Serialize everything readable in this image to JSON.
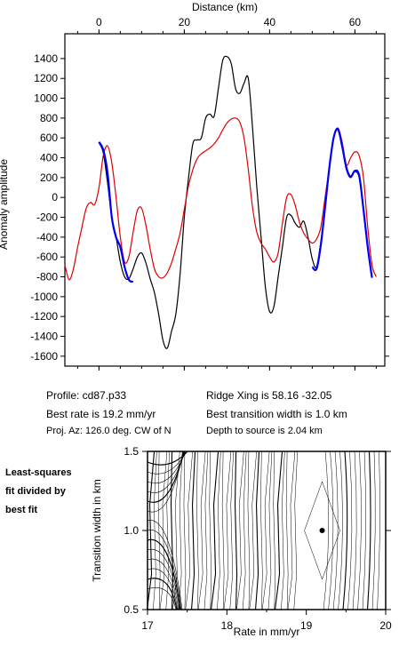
{
  "chart_data": [
    {
      "type": "line",
      "title": "",
      "xlabel": "Distance (km)",
      "ylabel": "Anomaly amplitude",
      "xlim": [
        -8,
        67
      ],
      "ylim": [
        -1700,
        1650
      ],
      "xticks": [
        "0",
        "20",
        "40",
        "60"
      ],
      "xtick_values": [
        0,
        20,
        40,
        60
      ],
      "yticks": [
        "1400",
        "1200",
        "1000",
        "800",
        "600",
        "400",
        "200",
        "0",
        "-200",
        "-400",
        "-600",
        "-800",
        "-1000",
        "-1200",
        "-1400",
        "-1600"
      ],
      "ytick_values": [
        1400,
        1200,
        1000,
        800,
        600,
        400,
        200,
        0,
        -200,
        -400,
        -600,
        -800,
        -1000,
        -1200,
        -1400,
        -1600
      ],
      "grid": false,
      "series": [
        {
          "color": "#000000",
          "x": [
            0,
            1,
            2,
            3,
            4,
            5,
            6,
            7,
            8,
            9,
            10,
            11,
            12,
            13,
            14,
            15,
            16,
            17,
            18,
            19,
            20,
            21,
            22,
            23,
            24,
            25,
            26,
            27,
            28,
            29,
            30,
            31,
            32,
            33,
            34,
            35,
            36,
            37,
            38,
            39,
            40,
            41,
            42,
            43,
            44,
            45,
            46,
            47,
            48,
            49,
            50,
            51,
            52,
            53,
            54,
            55,
            56,
            57,
            58,
            59,
            60,
            61,
            62,
            63,
            64
          ],
          "values": [
            550,
            450,
            150,
            -200,
            -400,
            -650,
            -800,
            -820,
            -720,
            -600,
            -560,
            -660,
            -820,
            -960,
            -1180,
            -1440,
            -1520,
            -1350,
            -1180,
            -780,
            -200,
            200,
            540,
            580,
            600,
            800,
            840,
            820,
            1100,
            1380,
            1420,
            1350,
            1100,
            1050,
            1150,
            1200,
            700,
            100,
            -400,
            -900,
            -1150,
            -1100,
            -800,
            -500,
            -200,
            -180,
            -260,
            -300,
            -240,
            -400,
            -620,
            -700,
            -450,
            -100,
            300,
            600,
            680,
            500,
            280,
            200,
            260,
            200,
            -100,
            -500,
            -800
          ]
        },
        {
          "color": "#e00000",
          "x": [
            -8,
            -7,
            -6,
            -5,
            -4,
            -3,
            -2,
            -1,
            0,
            1,
            2,
            3,
            4,
            5,
            6,
            7,
            8,
            9,
            10,
            11,
            12,
            13,
            14,
            15,
            16,
            17,
            18,
            19,
            20,
            21,
            22,
            23,
            24,
            25,
            26,
            27,
            28,
            29,
            30,
            31,
            32,
            33,
            34,
            35,
            36,
            37,
            38,
            39,
            40,
            41,
            42,
            43,
            44,
            45,
            46,
            47,
            48,
            49,
            50,
            51,
            52,
            53,
            54,
            55,
            56,
            57,
            58,
            59,
            60,
            61,
            62,
            63,
            64,
            65
          ],
          "values": [
            -680,
            -830,
            -720,
            -500,
            -300,
            -110,
            -50,
            -70,
            100,
            420,
            520,
            350,
            0,
            -400,
            -650,
            -600,
            -350,
            -130,
            -110,
            -280,
            -520,
            -720,
            -800,
            -810,
            -760,
            -660,
            -520,
            -360,
            -120,
            120,
            280,
            390,
            440,
            470,
            500,
            540,
            600,
            680,
            750,
            790,
            800,
            760,
            600,
            280,
            -100,
            -350,
            -460,
            -520,
            -600,
            -650,
            -560,
            -260,
            0,
            30,
            -80,
            -250,
            -360,
            -420,
            -460,
            -420,
            -300,
            0,
            300,
            600,
            700,
            560,
            330,
            400,
            460,
            420,
            200,
            -300,
            -680,
            -800
          ]
        },
        {
          "color": "#0000ff",
          "x": [
            0,
            1,
            2,
            3,
            4,
            5,
            6,
            7,
            8
          ],
          "values": [
            560,
            480,
            250,
            -200,
            -400,
            -500,
            -700,
            -830,
            -850
          ],
          "x2": [
            50,
            51,
            52,
            53,
            54,
            55,
            56,
            57,
            58,
            59,
            60,
            61,
            62,
            63,
            64
          ],
          "values2": [
            -700,
            -720,
            -480,
            -100,
            300,
            600,
            690,
            520,
            300,
            210,
            270,
            220,
            -120,
            -500,
            -810
          ]
        }
      ]
    },
    {
      "type": "contour",
      "xlabel": "Rate in mm/yr",
      "ylabel": "Transition width in km",
      "xlim": [
        17,
        20
      ],
      "ylim": [
        0.5,
        1.5
      ],
      "xticks": [
        "17",
        "18",
        "19",
        "20"
      ],
      "xtick_values": [
        17,
        18,
        19,
        20
      ],
      "yticks": [
        "1.5",
        "1.0",
        "0.5"
      ],
      "ytick_values": [
        1.5,
        1.0,
        0.5
      ],
      "best_fit": {
        "rate": 19.2,
        "width": 1.0
      }
    }
  ],
  "info": {
    "profile": "Profile: cd87.p33",
    "best_rate": "Best rate is 19.2 mm/yr",
    "proj_az": "Proj. Az: 126.0 deg. CW of N",
    "ridge_xing": "Ridge Xing is 58.16 -32.05",
    "transition": "Best transition width is 1.0 km",
    "depth": "Depth to source is   2.04 km"
  },
  "side_note": {
    "line1": "Least-squares",
    "line2": "fit divided by",
    "line3": "best fit"
  }
}
